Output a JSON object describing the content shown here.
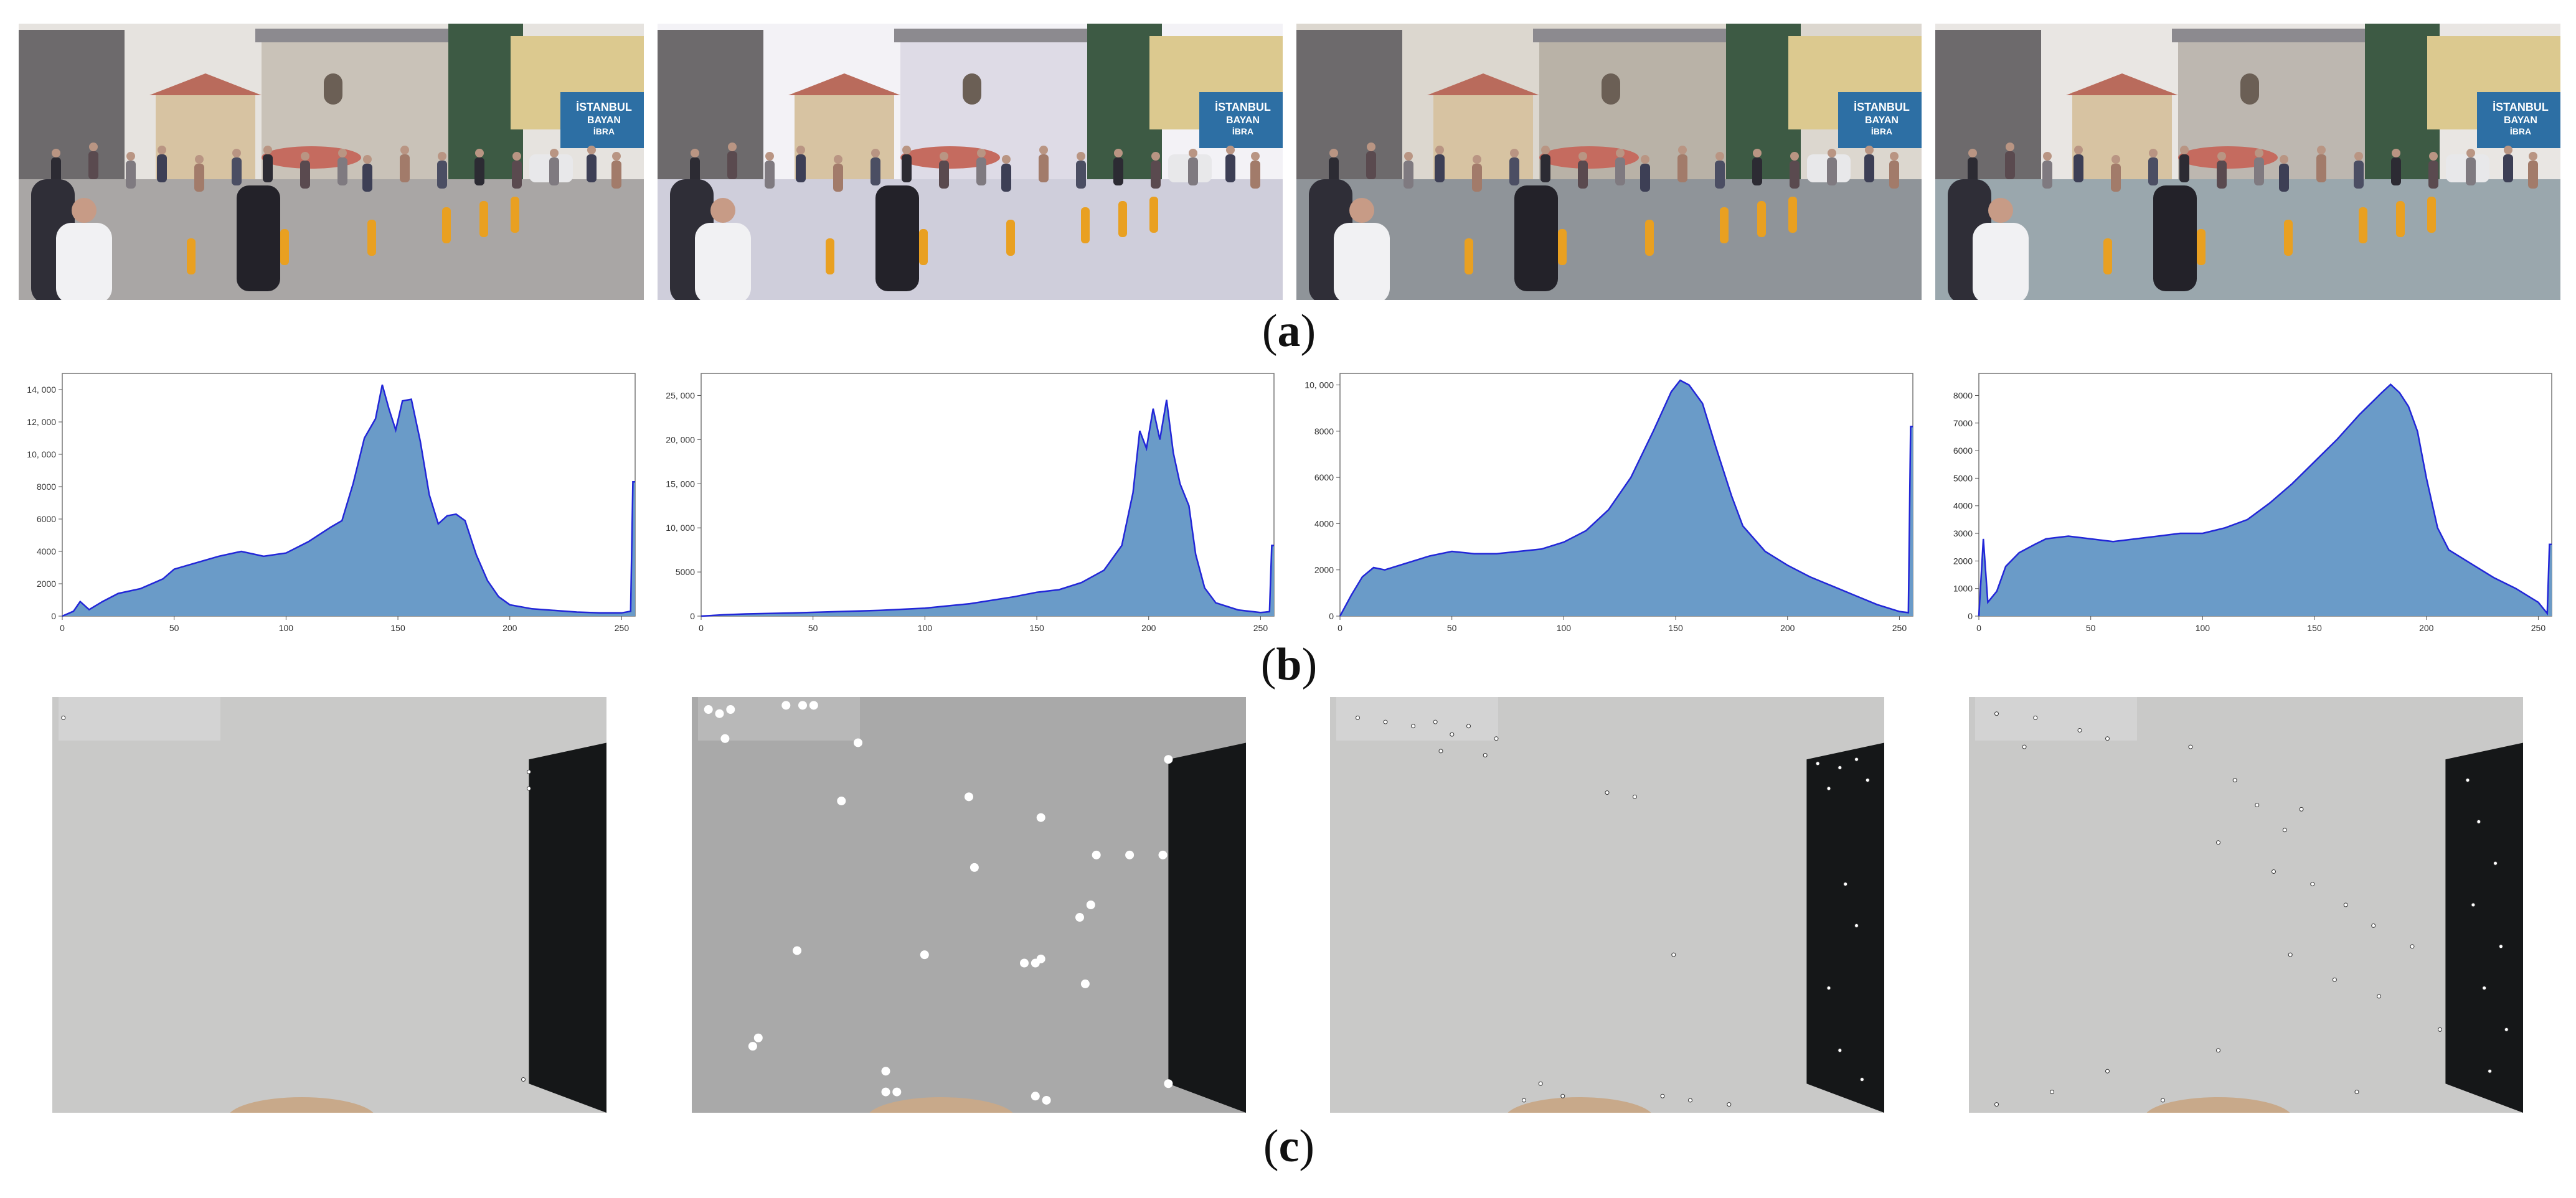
{
  "row_labels": {
    "a": {
      "open": "(",
      "letter": "a",
      "close": ")"
    },
    "b": {
      "open": "(",
      "letter": "b",
      "close": ")"
    },
    "c": {
      "open": "(",
      "letter": "c",
      "close": ")"
    }
  },
  "photos": [
    {
      "variant": "original",
      "tint": "#c9c2b8",
      "sky": "#e6e3df",
      "ground": "#a9a6a5"
    },
    {
      "variant": "washed",
      "tint": "#dedbe6",
      "sky": "#f3f2f6",
      "ground": "#cfcedb"
    },
    {
      "variant": "enhanced-a",
      "tint": "#b9b2a7",
      "sky": "#dcd7cf",
      "ground": "#8f9499"
    },
    {
      "variant": "enhanced-b",
      "tint": "#bdb7b0",
      "sky": "#e9e6e3",
      "ground": "#9aa7ad"
    }
  ],
  "photo_signs": [
    {
      "line1": "İSTANBUL",
      "line2": "BAYAN",
      "line3": "İBRA"
    },
    {
      "line1": "İSTANBUL",
      "line2": "BAYAN",
      "line3": "İBRA"
    },
    {
      "line1": "İSTANBUL",
      "line2": "BAYAN",
      "line3": "İBRA"
    },
    {
      "line1": "İSTANBUL",
      "line2": "BAYAN",
      "line3": "İBRA"
    }
  ],
  "colors": {
    "fill": "#6a9bc8",
    "line": "#2226d8",
    "frame": "#777777",
    "feature_bg": "#c9c9c8"
  },
  "chart_data": [
    {
      "type": "area",
      "xlim": [
        0,
        256
      ],
      "ylim": [
        0,
        15000
      ],
      "xticks": [
        0,
        50,
        100,
        150,
        200,
        250
      ],
      "yticks": [
        {
          "v": 0,
          "label": "0"
        },
        {
          "v": 2000,
          "label": "2000"
        },
        {
          "v": 4000,
          "label": "4000"
        },
        {
          "v": 6000,
          "label": "6000"
        },
        {
          "v": 8000,
          "label": "8000"
        },
        {
          "v": 10000,
          "label": "10, 000"
        },
        {
          "v": 12000,
          "label": "12, 000"
        },
        {
          "v": 14000,
          "label": "14, 000"
        }
      ],
      "points": [
        [
          0,
          0
        ],
        [
          5,
          300
        ],
        [
          8,
          900
        ],
        [
          12,
          400
        ],
        [
          18,
          900
        ],
        [
          25,
          1400
        ],
        [
          35,
          1700
        ],
        [
          45,
          2300
        ],
        [
          50,
          2900
        ],
        [
          60,
          3300
        ],
        [
          70,
          3700
        ],
        [
          80,
          4000
        ],
        [
          90,
          3700
        ],
        [
          100,
          3900
        ],
        [
          110,
          4600
        ],
        [
          120,
          5500
        ],
        [
          125,
          5900
        ],
        [
          130,
          8200
        ],
        [
          135,
          11000
        ],
        [
          140,
          12200
        ],
        [
          143,
          14300
        ],
        [
          146,
          12800
        ],
        [
          149,
          11500
        ],
        [
          152,
          13300
        ],
        [
          156,
          13400
        ],
        [
          160,
          10800
        ],
        [
          164,
          7500
        ],
        [
          168,
          5700
        ],
        [
          172,
          6200
        ],
        [
          176,
          6300
        ],
        [
          180,
          5900
        ],
        [
          185,
          3800
        ],
        [
          190,
          2200
        ],
        [
          195,
          1200
        ],
        [
          200,
          700
        ],
        [
          210,
          450
        ],
        [
          220,
          350
        ],
        [
          230,
          250
        ],
        [
          240,
          200
        ],
        [
          250,
          200
        ],
        [
          254,
          300
        ],
        [
          255,
          8300
        ],
        [
          256,
          8300
        ]
      ]
    },
    {
      "type": "area",
      "xlim": [
        0,
        256
      ],
      "ylim": [
        0,
        27500
      ],
      "xticks": [
        0,
        50,
        100,
        150,
        200,
        250
      ],
      "yticks": [
        {
          "v": 0,
          "label": "0"
        },
        {
          "v": 5000,
          "label": "5000"
        },
        {
          "v": 10000,
          "label": "10, 000"
        },
        {
          "v": 15000,
          "label": "15, 000"
        },
        {
          "v": 20000,
          "label": "20, 000"
        },
        {
          "v": 25000,
          "label": "25, 000"
        }
      ],
      "points": [
        [
          0,
          0
        ],
        [
          10,
          150
        ],
        [
          20,
          250
        ],
        [
          40,
          350
        ],
        [
          60,
          500
        ],
        [
          80,
          650
        ],
        [
          100,
          900
        ],
        [
          120,
          1400
        ],
        [
          140,
          2200
        ],
        [
          150,
          2700
        ],
        [
          160,
          3000
        ],
        [
          170,
          3800
        ],
        [
          180,
          5200
        ],
        [
          188,
          8000
        ],
        [
          193,
          14000
        ],
        [
          196,
          21000
        ],
        [
          199,
          19000
        ],
        [
          202,
          23500
        ],
        [
          205,
          20000
        ],
        [
          208,
          24500
        ],
        [
          211,
          18500
        ],
        [
          214,
          15000
        ],
        [
          218,
          12500
        ],
        [
          221,
          7000
        ],
        [
          225,
          3200
        ],
        [
          230,
          1500
        ],
        [
          240,
          700
        ],
        [
          250,
          400
        ],
        [
          254,
          500
        ],
        [
          255,
          8000
        ],
        [
          256,
          8000
        ]
      ]
    },
    {
      "type": "area",
      "xlim": [
        0,
        256
      ],
      "ylim": [
        0,
        10500
      ],
      "xticks": [
        0,
        50,
        100,
        150,
        200,
        250
      ],
      "yticks": [
        {
          "v": 0,
          "label": "0"
        },
        {
          "v": 2000,
          "label": "2000"
        },
        {
          "v": 4000,
          "label": "4000"
        },
        {
          "v": 6000,
          "label": "6000"
        },
        {
          "v": 8000,
          "label": "8000"
        },
        {
          "v": 10000,
          "label": "10, 000"
        }
      ],
      "points": [
        [
          0,
          0
        ],
        [
          5,
          900
        ],
        [
          10,
          1700
        ],
        [
          15,
          2100
        ],
        [
          20,
          2000
        ],
        [
          30,
          2300
        ],
        [
          40,
          2600
        ],
        [
          50,
          2800
        ],
        [
          60,
          2700
        ],
        [
          70,
          2700
        ],
        [
          80,
          2800
        ],
        [
          90,
          2900
        ],
        [
          100,
          3200
        ],
        [
          110,
          3700
        ],
        [
          120,
          4600
        ],
        [
          130,
          6000
        ],
        [
          140,
          8000
        ],
        [
          148,
          9700
        ],
        [
          152,
          10200
        ],
        [
          156,
          10000
        ],
        [
          162,
          9200
        ],
        [
          168,
          7300
        ],
        [
          175,
          5200
        ],
        [
          180,
          3900
        ],
        [
          190,
          2800
        ],
        [
          200,
          2200
        ],
        [
          210,
          1700
        ],
        [
          220,
          1300
        ],
        [
          230,
          900
        ],
        [
          240,
          500
        ],
        [
          250,
          200
        ],
        [
          254,
          150
        ],
        [
          255,
          8200
        ],
        [
          256,
          8200
        ]
      ]
    },
    {
      "type": "area",
      "xlim": [
        0,
        256
      ],
      "ylim": [
        0,
        8800
      ],
      "xticks": [
        0,
        50,
        100,
        150,
        200,
        250
      ],
      "yticks": [
        {
          "v": 0,
          "label": "0"
        },
        {
          "v": 1000,
          "label": "1000"
        },
        {
          "v": 2000,
          "label": "2000"
        },
        {
          "v": 3000,
          "label": "3000"
        },
        {
          "v": 4000,
          "label": "4000"
        },
        {
          "v": 5000,
          "label": "5000"
        },
        {
          "v": 6000,
          "label": "6000"
        },
        {
          "v": 7000,
          "label": "7000"
        },
        {
          "v": 8000,
          "label": "8000"
        }
      ],
      "points": [
        [
          0,
          0
        ],
        [
          2,
          2800
        ],
        [
          4,
          500
        ],
        [
          8,
          900
        ],
        [
          12,
          1800
        ],
        [
          18,
          2300
        ],
        [
          25,
          2600
        ],
        [
          30,
          2800
        ],
        [
          40,
          2900
        ],
        [
          50,
          2800
        ],
        [
          60,
          2700
        ],
        [
          70,
          2800
        ],
        [
          80,
          2900
        ],
        [
          90,
          3000
        ],
        [
          100,
          3000
        ],
        [
          110,
          3200
        ],
        [
          120,
          3500
        ],
        [
          130,
          4100
        ],
        [
          140,
          4800
        ],
        [
          150,
          5600
        ],
        [
          160,
          6400
        ],
        [
          170,
          7300
        ],
        [
          175,
          7700
        ],
        [
          180,
          8100
        ],
        [
          184,
          8400
        ],
        [
          188,
          8100
        ],
        [
          192,
          7600
        ],
        [
          196,
          6700
        ],
        [
          200,
          5000
        ],
        [
          205,
          3200
        ],
        [
          210,
          2400
        ],
        [
          220,
          1900
        ],
        [
          230,
          1400
        ],
        [
          240,
          1000
        ],
        [
          250,
          500
        ],
        [
          254,
          100
        ],
        [
          255,
          2600
        ],
        [
          256,
          2600
        ]
      ]
    }
  ],
  "feature_panels": [
    {
      "variant": "original",
      "points": [
        [
          0.02,
          0.05
        ],
        [
          0.86,
          0.18
        ],
        [
          0.86,
          0.22
        ],
        [
          0.85,
          0.92
        ]
      ]
    },
    {
      "variant": "detected-sparse",
      "points": [
        [
          0.03,
          0.03
        ],
        [
          0.05,
          0.04
        ],
        [
          0.07,
          0.03
        ],
        [
          0.06,
          0.1
        ],
        [
          0.17,
          0.02
        ],
        [
          0.2,
          0.02
        ],
        [
          0.22,
          0.02
        ],
        [
          0.3,
          0.11
        ],
        [
          0.27,
          0.25
        ],
        [
          0.5,
          0.24
        ],
        [
          0.63,
          0.29
        ],
        [
          0.51,
          0.41
        ],
        [
          0.73,
          0.38
        ],
        [
          0.79,
          0.38
        ],
        [
          0.85,
          0.38
        ],
        [
          0.72,
          0.5
        ],
        [
          0.7,
          0.53
        ],
        [
          0.19,
          0.61
        ],
        [
          0.42,
          0.62
        ],
        [
          0.6,
          0.64
        ],
        [
          0.62,
          0.64
        ],
        [
          0.63,
          0.63
        ],
        [
          0.71,
          0.69
        ],
        [
          0.12,
          0.82
        ],
        [
          0.11,
          0.84
        ],
        [
          0.35,
          0.9
        ],
        [
          0.35,
          0.95
        ],
        [
          0.37,
          0.95
        ],
        [
          0.62,
          0.96
        ],
        [
          0.64,
          0.97
        ],
        [
          0.86,
          0.15
        ],
        [
          0.86,
          0.93
        ]
      ]
    },
    {
      "variant": "detected-dense",
      "points": [
        [
          0.05,
          0.05
        ],
        [
          0.1,
          0.06
        ],
        [
          0.15,
          0.07
        ],
        [
          0.19,
          0.06
        ],
        [
          0.22,
          0.09
        ],
        [
          0.25,
          0.07
        ],
        [
          0.3,
          0.1
        ],
        [
          0.2,
          0.13
        ],
        [
          0.28,
          0.14
        ],
        [
          0.88,
          0.16
        ],
        [
          0.92,
          0.17
        ],
        [
          0.95,
          0.15
        ],
        [
          0.97,
          0.2
        ],
        [
          0.9,
          0.22
        ],
        [
          0.55,
          0.24
        ],
        [
          0.5,
          0.23
        ],
        [
          0.62,
          0.62
        ],
        [
          0.93,
          0.45
        ],
        [
          0.95,
          0.55
        ],
        [
          0.9,
          0.7
        ],
        [
          0.92,
          0.85
        ],
        [
          0.96,
          0.92
        ],
        [
          0.38,
          0.93
        ],
        [
          0.42,
          0.96
        ],
        [
          0.6,
          0.96
        ],
        [
          0.65,
          0.97
        ],
        [
          0.35,
          0.97
        ],
        [
          0.72,
          0.98
        ]
      ]
    },
    {
      "variant": "detected-uniform",
      "points": [
        [
          0.05,
          0.04
        ],
        [
          0.12,
          0.05
        ],
        [
          0.2,
          0.08
        ],
        [
          0.25,
          0.1
        ],
        [
          0.1,
          0.12
        ],
        [
          0.4,
          0.12
        ],
        [
          0.48,
          0.2
        ],
        [
          0.52,
          0.26
        ],
        [
          0.57,
          0.32
        ],
        [
          0.6,
          0.27
        ],
        [
          0.45,
          0.35
        ],
        [
          0.55,
          0.42
        ],
        [
          0.62,
          0.45
        ],
        [
          0.68,
          0.5
        ],
        [
          0.73,
          0.55
        ],
        [
          0.8,
          0.6
        ],
        [
          0.58,
          0.62
        ],
        [
          0.66,
          0.68
        ],
        [
          0.74,
          0.72
        ],
        [
          0.85,
          0.8
        ],
        [
          0.45,
          0.85
        ],
        [
          0.25,
          0.9
        ],
        [
          0.15,
          0.95
        ],
        [
          0.05,
          0.98
        ],
        [
          0.35,
          0.97
        ],
        [
          0.7,
          0.95
        ],
        [
          0.9,
          0.2
        ],
        [
          0.92,
          0.3
        ],
        [
          0.95,
          0.4
        ],
        [
          0.91,
          0.5
        ],
        [
          0.96,
          0.6
        ],
        [
          0.93,
          0.7
        ],
        [
          0.97,
          0.8
        ],
        [
          0.94,
          0.9
        ]
      ]
    }
  ]
}
